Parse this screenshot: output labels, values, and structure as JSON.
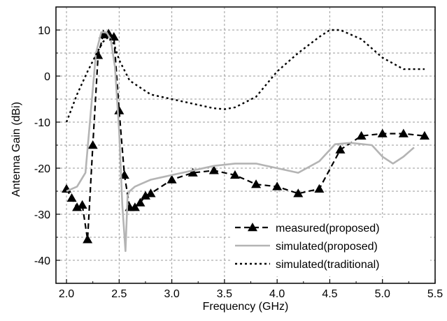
{
  "chart_data": {
    "type": "line",
    "xlabel": "Frequency (GHz)",
    "ylabel": "Antenna Gain (dBi)",
    "xlim": [
      1.9,
      5.5
    ],
    "ylim": [
      -45,
      15
    ],
    "x_ticks": [
      "2.0",
      "2.5",
      "3.0",
      "3.5",
      "4.0",
      "4.5",
      "5.0",
      "5.5"
    ],
    "y_ticks": [
      "10",
      "0",
      "-10",
      "-20",
      "-30",
      "-40"
    ],
    "grid": true,
    "legend_position": "bottom-right",
    "series": [
      {
        "name": "measured(proposed)",
        "style": "dashed-triangle",
        "color": "#000000",
        "x": [
          2.0,
          2.05,
          2.1,
          2.15,
          2.2,
          2.25,
          2.3,
          2.35,
          2.4,
          2.45,
          2.5,
          2.55,
          2.6,
          2.65,
          2.7,
          2.75,
          2.8,
          3.0,
          3.2,
          3.4,
          3.6,
          3.8,
          4.0,
          4.2,
          4.4,
          4.6,
          4.8,
          5.0,
          5.2,
          5.4
        ],
        "values": [
          -24.5,
          -26.5,
          -28.5,
          -28.0,
          -35.5,
          -15.0,
          4.5,
          9.0,
          9.2,
          8.5,
          -7.5,
          -21.5,
          -28.5,
          -28.5,
          -27.5,
          -26.0,
          -25.5,
          -22.5,
          -21.0,
          -20.5,
          -21.5,
          -23.5,
          -24.0,
          -25.5,
          -24.5,
          -16.0,
          -13.0,
          -12.5,
          -12.5,
          -13.0
        ]
      },
      {
        "name": "simulated(proposed)",
        "style": "solid",
        "color": "#b4b4b4",
        "x": [
          2.0,
          2.1,
          2.18,
          2.23,
          2.28,
          2.33,
          2.38,
          2.42,
          2.46,
          2.5,
          2.53,
          2.56,
          2.58,
          2.6,
          2.65,
          2.7,
          2.8,
          2.9,
          3.0,
          3.2,
          3.4,
          3.6,
          3.8,
          4.0,
          4.2,
          4.4,
          4.55,
          4.7,
          4.9,
          5.0,
          5.1,
          5.2,
          5.3
        ],
        "values": [
          -25.0,
          -24.0,
          -21.0,
          -8.0,
          5.0,
          9.5,
          9.5,
          8.0,
          2.0,
          -12.0,
          -28.0,
          -38.0,
          -26.0,
          -25.0,
          -24.0,
          -23.5,
          -22.5,
          -22.0,
          -21.5,
          -20.5,
          -19.5,
          -19.0,
          -19.0,
          -20.0,
          -21.0,
          -18.5,
          -14.8,
          -14.5,
          -15.0,
          -17.5,
          -19.0,
          -17.5,
          -15.5
        ]
      },
      {
        "name": "simulated(traditional)",
        "style": "dotted",
        "color": "#000000",
        "x": [
          2.0,
          2.1,
          2.2,
          2.3,
          2.35,
          2.4,
          2.45,
          2.5,
          2.6,
          2.8,
          3.0,
          3.2,
          3.4,
          3.5,
          3.6,
          3.8,
          4.0,
          4.2,
          4.4,
          4.5,
          4.6,
          4.8,
          5.0,
          5.2,
          5.4
        ],
        "values": [
          -10.0,
          -4.0,
          1.0,
          5.5,
          7.5,
          8.5,
          7.0,
          3.5,
          -1.0,
          -4.0,
          -5.0,
          -6.0,
          -7.0,
          -7.2,
          -6.8,
          -4.5,
          1.0,
          5.0,
          8.5,
          10.0,
          10.0,
          8.0,
          4.0,
          1.5,
          1.5
        ]
      }
    ]
  }
}
